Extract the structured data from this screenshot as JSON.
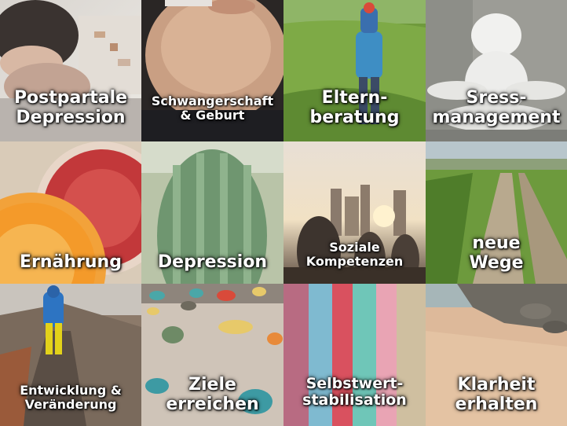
{
  "tiles": [
    {
      "id": "postpartale-depression",
      "lines": [
        "Postpartale",
        "Depression"
      ]
    },
    {
      "id": "schwangerschaft-geburt",
      "lines": [
        "Schwangerschaft",
        "& Geburt"
      ]
    },
    {
      "id": "elternberatung",
      "lines": [
        "Eltern-",
        "beratung"
      ]
    },
    {
      "id": "stressmanagement",
      "lines": [
        "Sress-",
        "management"
      ]
    },
    {
      "id": "ernaehrung",
      "lines": [
        "Ernährung"
      ]
    },
    {
      "id": "depression",
      "lines": [
        "Depression"
      ]
    },
    {
      "id": "soziale-kompetenzen",
      "lines": [
        "Soziale",
        "Kompetenzen"
      ]
    },
    {
      "id": "neue-wege",
      "lines": [
        "neue",
        "Wege"
      ]
    },
    {
      "id": "entwicklung-veraenderung",
      "lines": [
        "Entwicklung &",
        "Veränderung"
      ]
    },
    {
      "id": "ziele-erreichen",
      "lines": [
        "Ziele",
        "erreichen"
      ]
    },
    {
      "id": "selbstwertstabilisation",
      "lines": [
        "Selbstwert-",
        "stabilisation"
      ]
    },
    {
      "id": "klarheit-erhalten",
      "lines": [
        "Klarheit",
        "erhalten"
      ]
    }
  ]
}
